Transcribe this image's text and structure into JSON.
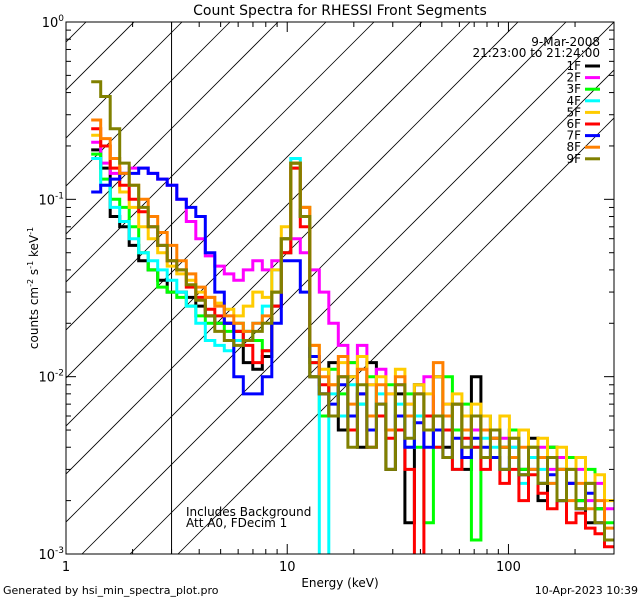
{
  "chart_data": {
    "type": "line",
    "title": "Count Spectra for RHESSI Front Segments",
    "xlabel": "Energy (keV)",
    "ylabel_base": "counts cm",
    "ylabel_exp1": "-2",
    "ylabel_mid": " s",
    "ylabel_exp2": "-1",
    "ylabel_end": " keV",
    "ylabel_exp3": "-1",
    "xscale": "log",
    "yscale": "log",
    "xlim": [
      1,
      300
    ],
    "ylim": [
      0.001,
      1
    ],
    "x_ticks": [
      {
        "value": 1,
        "label": "1"
      },
      {
        "value": 10,
        "label": "10"
      },
      {
        "value": 100,
        "label": "100"
      }
    ],
    "y_ticks": [
      {
        "value": 1,
        "base": "10",
        "exp": "0"
      },
      {
        "value": 0.1,
        "base": "10",
        "exp": "-1"
      },
      {
        "value": 0.01,
        "base": "10",
        "exp": "-2"
      },
      {
        "value": 0.001,
        "base": "10",
        "exp": "-3"
      }
    ],
    "shaded_region": {
      "x_from": 1,
      "x_to": 3,
      "style": "diagonal hatch"
    },
    "date": "9-Mar-2008",
    "time_range": "21:23:00 to 21:24:00",
    "annotation_lines": [
      "Includes Background",
      "Att A0, FDecim 1"
    ],
    "legend_position": "top-right",
    "series": [
      {
        "name": "1F",
        "color": "#000000",
        "values": [
          0.19,
          0.15,
          0.08,
          0.07,
          0.055,
          0.045,
          0.04,
          0.035,
          0.03,
          0.03,
          0.028,
          0.025,
          0.022,
          0.02,
          0.02,
          0.018,
          0.012,
          0.011,
          0.013,
          0.025,
          0.06,
          0.16,
          0.08,
          0.01,
          0.008,
          0.012,
          0.005,
          0.01,
          0.004,
          0.012,
          0.006,
          0.003,
          0.008,
          0.0015,
          0.009,
          0.005,
          0.01,
          0.004,
          0.007,
          0.003,
          0.01,
          0.005,
          0.0045,
          0.004,
          0.005,
          0.003,
          0.0045,
          0.002,
          0.004,
          0.003,
          0.0025,
          0.002,
          0.0015,
          0.0018,
          0.0012
        ]
      },
      {
        "name": "2F",
        "color": "#ff00ff",
        "values": [
          0.21,
          0.16,
          0.14,
          0.14,
          0.15,
          0.15,
          0.14,
          0.13,
          0.12,
          0.1,
          0.075,
          0.06,
          0.048,
          0.042,
          0.038,
          0.035,
          0.04,
          0.045,
          0.04,
          0.045,
          0.05,
          0.06,
          0.05,
          0.04,
          0.03,
          0.02,
          0.015,
          0.012,
          0.015,
          0.009,
          0.011,
          0.008,
          0.009,
          0.007,
          0.008,
          0.01,
          0.006,
          0.007,
          0.005,
          0.006,
          0.005,
          0.006,
          0.005,
          0.0045,
          0.004,
          0.005,
          0.0035,
          0.004,
          0.003,
          0.0035,
          0.0025,
          0.003,
          0.002,
          0.0025,
          0.0018
        ]
      },
      {
        "name": "3F",
        "color": "#00ff00",
        "values": [
          0.18,
          0.13,
          0.1,
          0.09,
          0.07,
          0.05,
          0.04,
          0.032,
          0.03,
          0.028,
          0.025,
          0.022,
          0.02,
          0.02,
          0.018,
          0.02,
          0.018,
          0.016,
          0.014,
          0.03,
          0.05,
          0.15,
          0.08,
          0.012,
          0.006,
          0.011,
          0.008,
          0.012,
          0.007,
          0.01,
          0.006,
          0.009,
          0.005,
          0.008,
          0.004,
          0.0015,
          0.006,
          0.01,
          0.005,
          0.007,
          0.0012,
          0.006,
          0.005,
          0.004,
          0.005,
          0.003,
          0.004,
          0.0025,
          0.004,
          0.003,
          0.0035,
          0.002,
          0.003,
          0.0018,
          0.0015
        ]
      },
      {
        "name": "4F",
        "color": "#00ffff",
        "values": [
          0.17,
          0.12,
          0.09,
          0.075,
          0.06,
          0.05,
          0.045,
          0.04,
          0.035,
          0.03,
          0.025,
          0.02,
          0.016,
          0.015,
          0.014,
          0.016,
          0.018,
          0.02,
          0.025,
          0.04,
          0.06,
          0.17,
          0.09,
          0.012,
          0.0008,
          0.008,
          0.006,
          0.009,
          0.007,
          0.006,
          0.008,
          0.005,
          0.007,
          0.004,
          0.006,
          0.005,
          0.004,
          0.006,
          0.003,
          0.005,
          0.004,
          0.0045,
          0.004,
          0.003,
          0.004,
          0.0025,
          0.0035,
          0.003,
          0.0025,
          0.002,
          0.003,
          0.0018,
          0.0025,
          0.0015,
          0.0012
        ]
      },
      {
        "name": "5F",
        "color": "#ffcc00",
        "values": [
          0.23,
          0.2,
          0.15,
          0.11,
          0.09,
          0.07,
          0.06,
          0.05,
          0.042,
          0.038,
          0.035,
          0.03,
          0.028,
          0.026,
          0.024,
          0.022,
          0.025,
          0.03,
          0.028,
          0.04,
          0.07,
          0.16,
          0.09,
          0.015,
          0.011,
          0.009,
          0.012,
          0.01,
          0.013,
          0.009,
          0.01,
          0.008,
          0.011,
          0.007,
          0.009,
          0.008,
          0.01,
          0.007,
          0.008,
          0.006,
          0.007,
          0.006,
          0.005,
          0.006,
          0.0045,
          0.005,
          0.004,
          0.0045,
          0.0035,
          0.004,
          0.003,
          0.0035,
          0.0025,
          0.0028,
          0.002
        ]
      },
      {
        "name": "6F",
        "color": "#ff0000",
        "values": [
          0.25,
          0.2,
          0.15,
          0.12,
          0.1,
          0.085,
          0.07,
          0.055,
          0.045,
          0.04,
          0.032,
          0.028,
          0.024,
          0.022,
          0.02,
          0.018,
          0.015,
          0.012,
          0.014,
          0.025,
          0.05,
          0.15,
          0.07,
          0.012,
          0.009,
          0.006,
          0.01,
          0.005,
          0.008,
          0.004,
          0.006,
          0.0045,
          0.005,
          0.003,
          0.0008,
          0.006,
          0.004,
          0.005,
          0.003,
          0.0045,
          0.004,
          0.003,
          0.0035,
          0.0025,
          0.003,
          0.002,
          0.0028,
          0.0022,
          0.0018,
          0.002,
          0.0015,
          0.0017,
          0.0014,
          0.0013,
          0.0011
        ]
      },
      {
        "name": "7F",
        "color": "#0000ff",
        "values": [
          0.11,
          0.12,
          0.13,
          0.14,
          0.14,
          0.15,
          0.14,
          0.13,
          0.12,
          0.1,
          0.09,
          0.08,
          0.05,
          0.03,
          0.02,
          0.01,
          0.008,
          0.008,
          0.01,
          0.02,
          0.045,
          0.045,
          0.03,
          0.013,
          0.008,
          0.007,
          0.009,
          0.006,
          0.008,
          0.005,
          0.007,
          0.005,
          0.006,
          0.004,
          0.0055,
          0.004,
          0.005,
          0.0035,
          0.0045,
          0.0035,
          0.0045,
          0.004,
          0.0035,
          0.003,
          0.0035,
          0.0028,
          0.003,
          0.0025,
          0.0028,
          0.002,
          0.0025,
          0.0018,
          0.0022,
          0.0015,
          0.0012
        ]
      },
      {
        "name": "8F",
        "color": "#ff8000",
        "values": [
          0.28,
          0.22,
          0.17,
          0.14,
          0.12,
          0.1,
          0.08,
          0.065,
          0.055,
          0.045,
          0.038,
          0.032,
          0.028,
          0.025,
          0.022,
          0.02,
          0.018,
          0.02,
          0.022,
          0.03,
          0.06,
          0.16,
          0.09,
          0.015,
          0.01,
          0.009,
          0.013,
          0.007,
          0.011,
          0.006,
          0.009,
          0.005,
          0.01,
          0.006,
          0.008,
          0.005,
          0.012,
          0.006,
          0.007,
          0.005,
          0.006,
          0.005,
          0.0045,
          0.004,
          0.0035,
          0.004,
          0.003,
          0.0035,
          0.0025,
          0.003,
          0.002,
          0.0025,
          0.0018,
          0.002,
          0.0014
        ]
      },
      {
        "name": "9F",
        "color": "#808000",
        "values": [
          0.46,
          0.38,
          0.25,
          0.16,
          0.12,
          0.09,
          0.07,
          0.055,
          0.045,
          0.04,
          0.033,
          0.027,
          0.022,
          0.018,
          0.016,
          0.015,
          0.016,
          0.018,
          0.02,
          0.03,
          0.06,
          0.16,
          0.08,
          0.01,
          0.008,
          0.006,
          0.01,
          0.004,
          0.009,
          0.004,
          0.007,
          0.003,
          0.009,
          0.0045,
          0.008,
          0.005,
          0.006,
          0.0035,
          0.007,
          0.004,
          0.006,
          0.0035,
          0.005,
          0.003,
          0.0045,
          0.0028,
          0.004,
          0.0025,
          0.0035,
          0.002,
          0.003,
          0.0018,
          0.0025,
          0.0015,
          0.0012
        ]
      }
    ]
  },
  "footer": {
    "generator": "Generated by hsi_min_spectra_plot.pro",
    "timestamp": "10-Apr-2023 10:39"
  }
}
